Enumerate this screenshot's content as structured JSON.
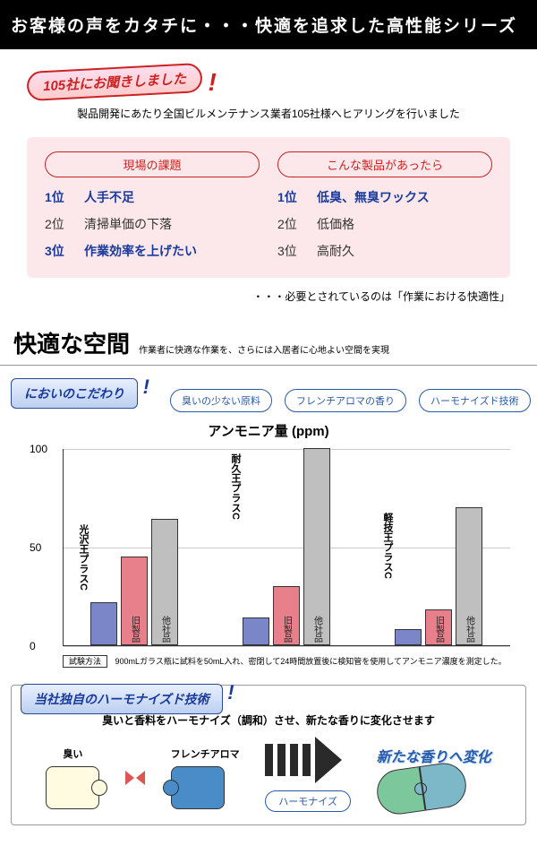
{
  "header": {
    "title": "お客様の声をカタチに・・・快適を追求した高性能シリーズ"
  },
  "survey": {
    "stamp": "105社にお聞きしました",
    "intro": "製品開発にあたり全国ビルメンテナンス業者105社様へヒアリングを行いました",
    "left_header": "現場の課題",
    "right_header": "こんな製品があったら",
    "left": [
      {
        "rank": "1位",
        "text": "人手不足",
        "hl": true
      },
      {
        "rank": "2位",
        "text": "清掃単価の下落",
        "hl": false
      },
      {
        "rank": "3位",
        "text": "作業効率を上げたい",
        "hl": true
      }
    ],
    "right": [
      {
        "rank": "1位",
        "text": "低臭、無臭ワックス",
        "hl": true
      },
      {
        "rank": "2位",
        "text": "低価格",
        "hl": false
      },
      {
        "rank": "3位",
        "text": "高耐久",
        "hl": false
      }
    ],
    "footer": "・・・必要とされているのは「作業における快適性」"
  },
  "space": {
    "title": "快適な空間",
    "sub": "作業者に快適な作業を、さらには入居者に心地よい空間を実現"
  },
  "odor": {
    "stamp": "においのこだわり",
    "pills": [
      "臭いの少ない原料",
      "フレンチアロマの香り",
      "ハーモナイズド技術"
    ]
  },
  "chart": {
    "title": "アンモニア量 (ppm)",
    "ylim": [
      0,
      100
    ],
    "yticks": [
      0,
      50,
      100
    ],
    "bar_labels": [
      "旧製品",
      "他社品"
    ],
    "colors": {
      "A": "#7a86c8",
      "B": "#e8808c",
      "C": "#bfbfbf"
    },
    "groups": [
      {
        "label": "光沢王プラスC",
        "vals": [
          22,
          45,
          64
        ]
      },
      {
        "label": "耐久王プラスC",
        "vals": [
          14,
          30,
          100
        ]
      },
      {
        "label": "軽技王プラスC",
        "vals": [
          8,
          18,
          70
        ]
      }
    ],
    "method_tag": "試験方法",
    "method": "900mLガラス瓶に試料を50mL入れ、密閉して24時間放置後に検知管を使用してアンモニア濃度を測定した。"
  },
  "harmonize": {
    "stamp": "当社独自のハーモナイズド技術",
    "desc": "臭いと香料をハーモナイズ（調和）させ、新たな香りに変化させます",
    "left": "臭い",
    "mid": "フレンチアロマ",
    "pill": "ハーモナイズ",
    "out": "新たな香りへ変化"
  }
}
